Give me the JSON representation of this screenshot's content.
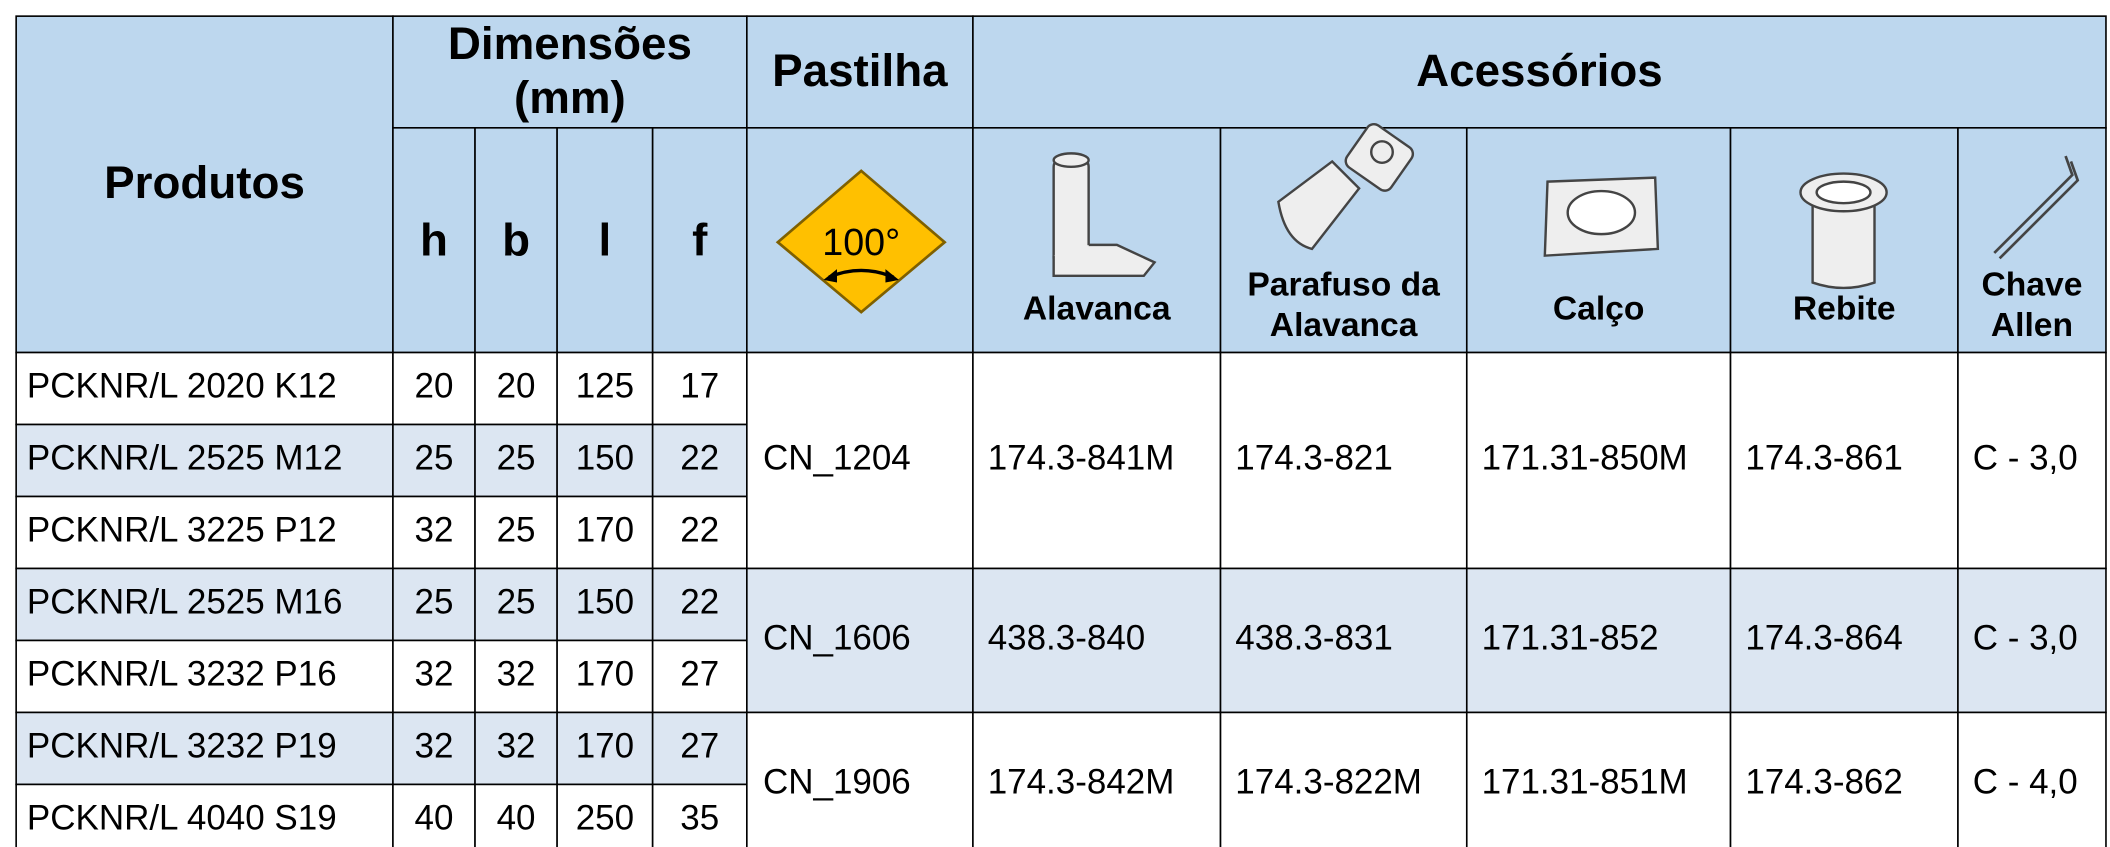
{
  "header": {
    "products": "Produtos",
    "dimensions": [
      "Dimensões",
      "(mm)"
    ],
    "columns": [
      "h",
      "b",
      "l",
      "f"
    ],
    "insert": "Pastilha",
    "insert_angle": "100°",
    "accessories": "Acessórios",
    "accessory_columns": [
      [
        "Alavanca"
      ],
      [
        "Parafuso da",
        "Alavanca"
      ],
      [
        "Calço"
      ],
      [
        "Rebite"
      ],
      [
        "Chave",
        "Allen"
      ]
    ]
  },
  "table": {
    "groups": [
      {
        "insert": "CN_1204",
        "accessories": [
          "174.3-841M",
          "174.3-821",
          "171.31-850M",
          "174.3-861",
          "C - 3,0"
        ],
        "rows": [
          [
            "PCKNR/L 2020 K12",
            "20",
            "20",
            "125",
            "17"
          ],
          [
            "PCKNR/L 2525 M12",
            "25",
            "25",
            "150",
            "22"
          ],
          [
            "PCKNR/L 3225 P12",
            "32",
            "25",
            "170",
            "22"
          ]
        ]
      },
      {
        "insert": "CN_1606",
        "accessories": [
          "438.3-840",
          "438.3-831",
          "171.31-852",
          "174.3-864",
          "C - 3,0"
        ],
        "rows": [
          [
            "PCKNR/L 2525 M16",
            "25",
            "25",
            "150",
            "22"
          ],
          [
            "PCKNR/L 3232 P16",
            "32",
            "32",
            "170",
            "27"
          ]
        ]
      },
      {
        "insert": "CN_1906",
        "accessories": [
          "174.3-842M",
          "174.3-822M",
          "171.31-851M",
          "174.3-862",
          "C - 4,0"
        ],
        "rows": [
          [
            "PCKNR/L 3232 P19",
            "32",
            "32",
            "170",
            "27"
          ],
          [
            "PCKNR/L 4040 S19",
            "40",
            "40",
            "250",
            "35"
          ]
        ]
      }
    ]
  }
}
